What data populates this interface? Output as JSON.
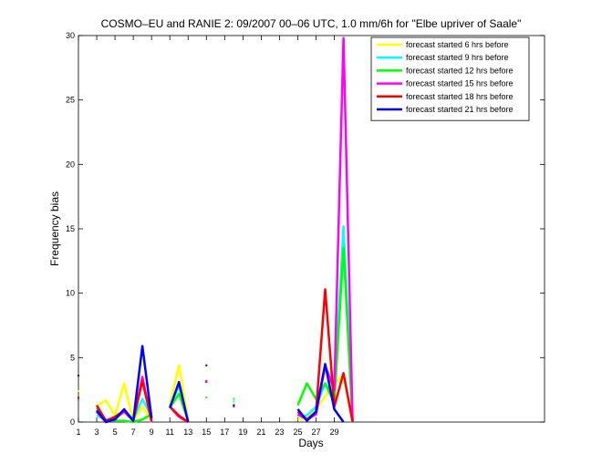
{
  "chart_data": {
    "type": "line",
    "title": "COSMO–EU and RANIE 2: 09/2007 00–06 UTC, 1.0 mm/6h for \"Elbe upriver of Saale\"",
    "xlabel": "Days",
    "ylabel": "Frequency bias",
    "xlim": [
      1,
      52
    ],
    "ylim": [
      0,
      30
    ],
    "xticks": [
      1,
      3,
      5,
      7,
      9,
      11,
      13,
      15,
      17,
      19,
      21,
      23,
      25,
      27,
      29
    ],
    "yticks": [
      0,
      5,
      10,
      15,
      20,
      25,
      30
    ],
    "grid": false,
    "legend_position": "top-right",
    "series": [
      {
        "name": "forecast started 6 hrs before",
        "color": "#ffff00",
        "points": [
          [
            1,
            2.4
          ],
          null,
          [
            3,
            1.2
          ],
          [
            4,
            1.7
          ],
          [
            5,
            0.5
          ],
          [
            6,
            3.0
          ],
          [
            7,
            0.1
          ],
          [
            8,
            1.2
          ],
          [
            9,
            0.0
          ],
          null,
          [
            11,
            1.3
          ],
          [
            12,
            4.4
          ],
          [
            13,
            0.2
          ],
          null,
          [
            15,
            4.4
          ],
          null,
          [
            18,
            1.4
          ],
          null,
          [
            25,
            0.2
          ],
          [
            26,
            0.3
          ],
          [
            27,
            1.0
          ],
          [
            28,
            2.0
          ],
          [
            29,
            3.0
          ],
          [
            30,
            3.6
          ],
          [
            31,
            0.0
          ]
        ]
      },
      {
        "name": "forecast started 9 hrs before",
        "color": "#00ffff",
        "points": [
          [
            1,
            2.0
          ],
          null,
          [
            3,
            0.5
          ],
          [
            4,
            0.2
          ],
          [
            5,
            0.2
          ],
          [
            6,
            0.9
          ],
          [
            7,
            0.2
          ],
          [
            8,
            1.8
          ],
          [
            9,
            0.4
          ],
          null,
          [
            11,
            1.2
          ],
          [
            12,
            2.8
          ],
          [
            13,
            0.1
          ],
          null,
          [
            15,
            3.2
          ],
          null,
          [
            18,
            1.6
          ],
          null,
          [
            25,
            0.5
          ],
          [
            26,
            0.5
          ],
          [
            27,
            1.2
          ],
          [
            28,
            3.0
          ],
          [
            29,
            2.0
          ],
          [
            30,
            15.2
          ],
          [
            31,
            0.0
          ]
        ]
      },
      {
        "name": "forecast started 12 hrs before",
        "color": "#00ff00",
        "points": [
          [
            1,
            2.0
          ],
          null,
          [
            3,
            1.1
          ],
          [
            4,
            0.1
          ],
          [
            5,
            0.1
          ],
          [
            6,
            0.1
          ],
          [
            7,
            0.0
          ],
          [
            8,
            0.2
          ],
          [
            9,
            0.6
          ],
          null,
          [
            11,
            1.1
          ],
          [
            12,
            2.2
          ],
          [
            13,
            0.1
          ],
          null,
          [
            15,
            1.9
          ],
          null,
          [
            18,
            1.8
          ],
          null,
          [
            25,
            1.3
          ],
          [
            26,
            3.0
          ],
          [
            27,
            1.8
          ],
          [
            28,
            3.0
          ],
          [
            29,
            1.5
          ],
          [
            30,
            13.5
          ],
          [
            31,
            0.0
          ]
        ]
      },
      {
        "name": "forecast started 15 hrs before",
        "color": "#ff00ff",
        "points": [
          [
            1,
            1.8
          ],
          null,
          [
            3,
            0.8
          ],
          [
            4,
            0.0
          ],
          [
            5,
            0.3
          ],
          [
            6,
            0.8
          ],
          [
            7,
            0.1
          ],
          [
            8,
            3.5
          ],
          [
            9,
            0.0
          ],
          null,
          [
            11,
            1.2
          ],
          [
            12,
            0.4
          ],
          [
            13,
            0.0
          ],
          null,
          [
            15,
            3.2
          ],
          null,
          [
            18,
            1.2
          ],
          null,
          [
            25,
            0.6
          ],
          [
            26,
            0.2
          ],
          [
            27,
            0.6
          ],
          [
            28,
            4.4
          ],
          [
            29,
            2.5
          ],
          [
            30,
            29.8
          ],
          [
            31,
            0.0
          ]
        ]
      },
      {
        "name": "forecast started 18 hrs before",
        "color": "#ff0000",
        "points": [
          [
            1,
            1.9
          ],
          null,
          [
            3,
            1.3
          ],
          [
            4,
            0.1
          ],
          [
            5,
            0.4
          ],
          [
            6,
            0.9
          ],
          [
            7,
            0.1
          ],
          [
            8,
            3.2
          ],
          [
            9,
            0.1
          ],
          null,
          [
            11,
            1.2
          ],
          [
            12,
            0.5
          ],
          [
            13,
            0.0
          ],
          null,
          [
            15,
            3.1
          ],
          null,
          [
            18,
            1.3
          ],
          null,
          [
            25,
            0.8
          ],
          [
            26,
            0.2
          ],
          [
            27,
            0.8
          ],
          [
            28,
            10.3
          ],
          [
            29,
            1.2
          ],
          [
            30,
            3.8
          ],
          [
            31,
            0.0
          ]
        ]
      },
      {
        "name": "forecast started 21 hrs before",
        "color": "#0000ff",
        "points": [
          [
            1,
            3.6
          ],
          null,
          [
            3,
            0.9
          ],
          [
            4,
            0.0
          ],
          [
            5,
            0.2
          ],
          [
            6,
            1.0
          ],
          [
            7,
            0.1
          ],
          [
            8,
            5.9
          ],
          [
            9,
            0.3
          ],
          null,
          [
            11,
            1.1
          ],
          [
            12,
            3.1
          ],
          [
            13,
            0.0
          ],
          null,
          [
            15,
            4.4
          ],
          null,
          [
            18,
            1.3
          ],
          null,
          [
            25,
            1.0
          ],
          [
            26,
            0.1
          ],
          [
            27,
            0.8
          ],
          [
            28,
            4.5
          ],
          [
            29,
            1.0
          ],
          [
            30,
            0.0
          ]
        ]
      }
    ]
  }
}
